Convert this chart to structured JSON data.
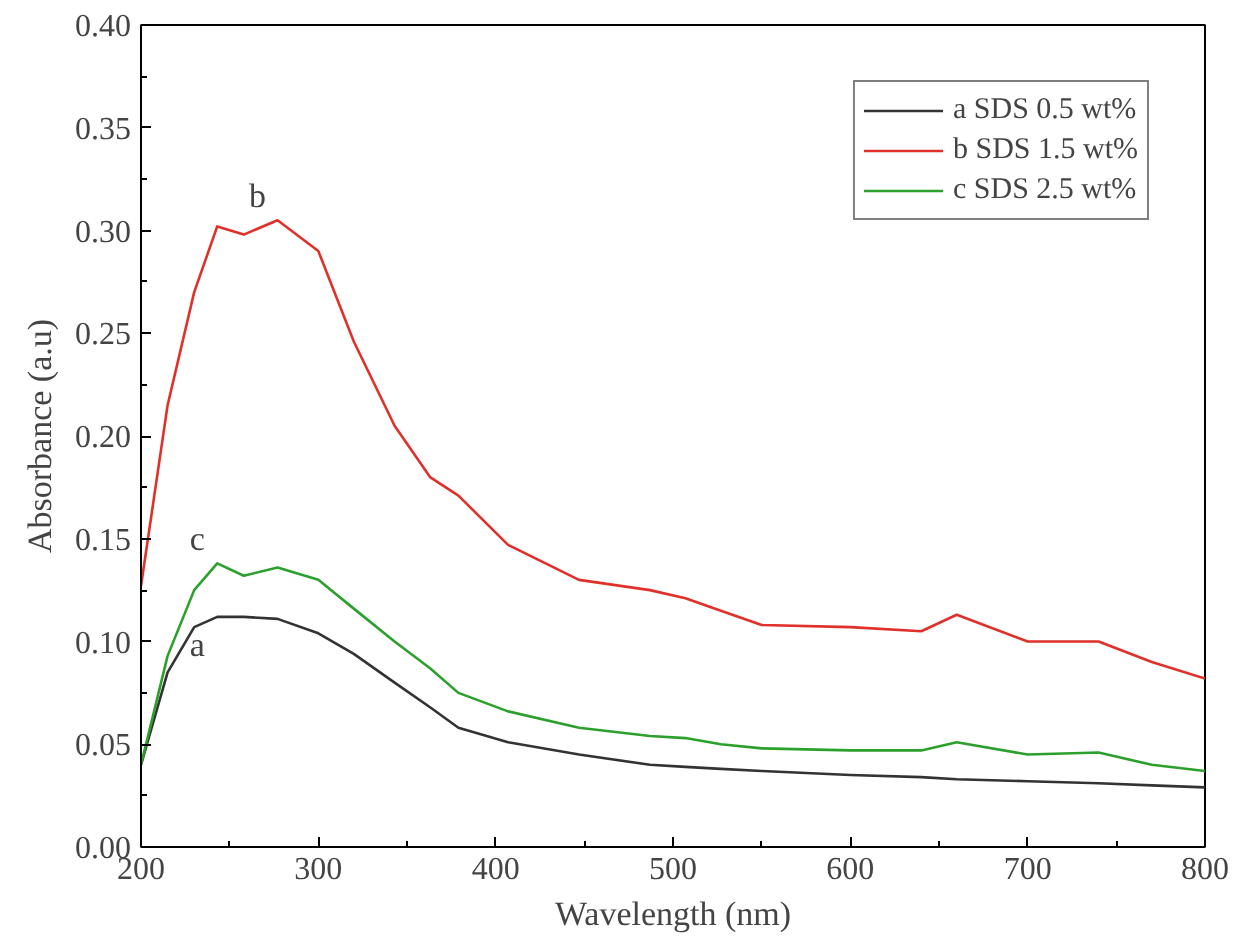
{
  "chart_data": {
    "type": "line",
    "xlabel": "Wavelength (nm)",
    "ylabel": "Absorbance (a.u)",
    "xlim": [
      200,
      800
    ],
    "ylim": [
      0,
      0.4
    ],
    "xticks": [
      200,
      300,
      400,
      500,
      600,
      700,
      800
    ],
    "yticks": [
      {
        "value": 0,
        "label": "0.00"
      },
      {
        "value": 0.05,
        "label": "0.05"
      },
      {
        "value": 0.1,
        "label": "0.10"
      },
      {
        "value": 0.15,
        "label": "0.15"
      },
      {
        "value": 0.2,
        "label": "0.20"
      },
      {
        "value": 0.25,
        "label": "0.25"
      },
      {
        "value": 0.3,
        "label": "0.30"
      },
      {
        "value": 0.35,
        "label": "0.35"
      },
      {
        "value": 0.4,
        "label": "0.40"
      }
    ],
    "grid": false,
    "legend": "top right",
    "marker": "none",
    "line_style": "solid",
    "x": [
      200,
      215,
      230,
      243,
      258,
      277,
      300,
      320,
      343,
      363,
      379,
      407,
      447,
      487,
      507,
      527,
      550,
      600,
      640,
      660,
      700,
      740,
      770,
      800
    ],
    "series": [
      {
        "name": "a SDS 0.5 wt%",
        "color": "#333333",
        "values": [
          0.04,
          0.085,
          0.107,
          0.112,
          0.112,
          0.111,
          0.104,
          0.094,
          0.08,
          0.068,
          0.058,
          0.051,
          0.045,
          0.04,
          0.039,
          0.038,
          0.037,
          0.035,
          0.034,
          0.033,
          0.032,
          0.031,
          0.03,
          0.029
        ]
      },
      {
        "name": "b SDS 1.5 wt%",
        "color": "#e0302a",
        "values": [
          0.127,
          0.215,
          0.27,
          0.302,
          0.298,
          0.305,
          0.29,
          0.246,
          0.205,
          0.18,
          0.171,
          0.147,
          0.13,
          0.125,
          0.121,
          0.115,
          0.108,
          0.107,
          0.105,
          0.113,
          0.1,
          0.1,
          0.09,
          0.082
        ]
      },
      {
        "name": "c SDS 2.5 wt%",
        "color": "#2ca02c",
        "values": [
          0.04,
          0.093,
          0.125,
          0.138,
          0.132,
          0.136,
          0.13,
          0.116,
          0.1,
          0.087,
          0.075,
          0.066,
          0.058,
          0.054,
          0.053,
          0.05,
          0.048,
          0.047,
          0.047,
          0.051,
          0.045,
          0.046,
          0.04,
          0.037
        ]
      }
    ],
    "annotations": [
      "a",
      "b",
      "c"
    ]
  }
}
